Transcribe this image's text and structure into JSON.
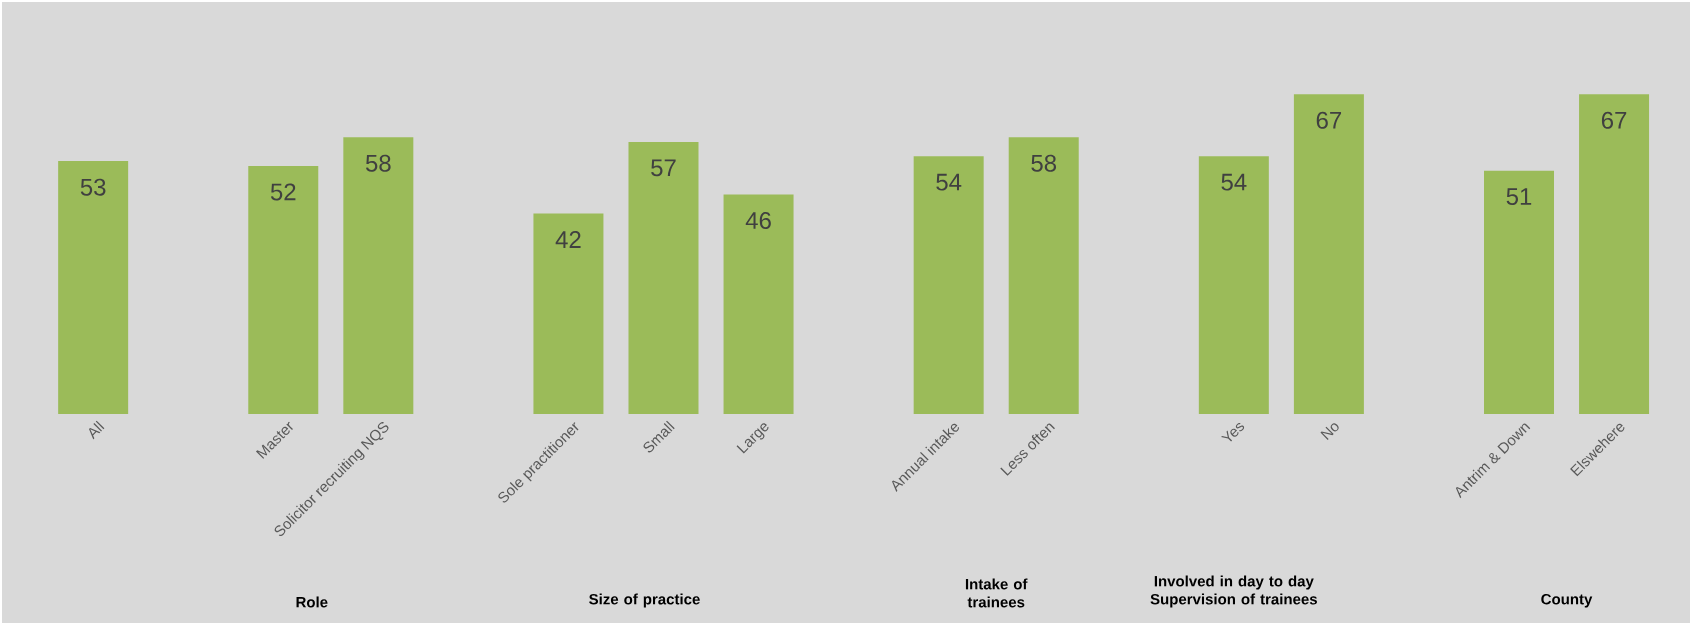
{
  "chart_data": {
    "type": "bar",
    "categories": [
      "All",
      null,
      "Master",
      "Solicitor recruiting NQS",
      null,
      "Sole practitioner",
      "Small",
      "Large",
      null,
      "Annual intake",
      "Less often",
      null,
      "Yes",
      "No",
      null,
      "Antrim & Down",
      "Elswehere"
    ],
    "values": [
      53,
      null,
      52,
      58,
      null,
      42,
      57,
      46,
      null,
      54,
      58,
      null,
      54,
      67,
      null,
      51,
      67
    ],
    "color": "#9bbb59",
    "data_labels": true,
    "annotations": [
      "Role",
      "Size of practice",
      "Intake of trainees",
      "Involved in day to day Supervision of trainees",
      "County"
    ]
  }
}
